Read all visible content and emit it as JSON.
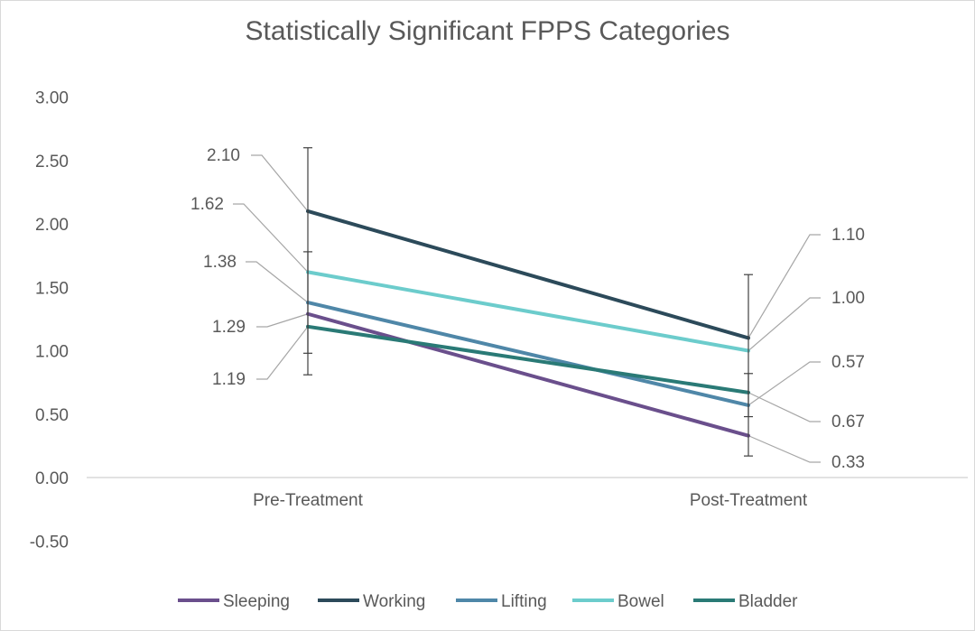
{
  "chart_data": {
    "type": "line",
    "title": "Statistically Significant FPPS Categories",
    "categories": [
      "Pre-Treatment",
      "Post-Treatment"
    ],
    "ylim": [
      -0.5,
      3.0
    ],
    "yticks": [
      3.0,
      2.5,
      2.0,
      1.5,
      1.0,
      0.5,
      0.0,
      -0.5
    ],
    "ytick_labels": [
      "3.00",
      "2.50",
      "2.00",
      "1.50",
      "1.00",
      "0.50",
      "0.00",
      "-0.50"
    ],
    "grid": false,
    "legend_position": "bottom",
    "series": [
      {
        "name": "Sleeping",
        "color": "#6a4f8c",
        "values": [
          1.29,
          0.33
        ],
        "labels": [
          "1.29",
          "0.33"
        ]
      },
      {
        "name": "Working",
        "color": "#2c4a5a",
        "values": [
          2.1,
          1.1
        ],
        "labels": [
          "2.10",
          "1.10"
        ]
      },
      {
        "name": "Lifting",
        "color": "#4f87a8",
        "values": [
          1.38,
          0.57
        ],
        "labels": [
          "1.38",
          "0.57"
        ]
      },
      {
        "name": "Bowel",
        "color": "#6ccccc",
        "values": [
          1.62,
          1.0
        ],
        "labels": [
          "1.62",
          "1.00"
        ]
      },
      {
        "name": "Bladder",
        "color": "#2a7a76",
        "values": [
          1.19,
          0.67
        ],
        "labels": [
          "1.19",
          "0.67"
        ]
      }
    ],
    "error_bars": [
      {
        "category": "Pre-Treatment",
        "low": 0.81,
        "high": 2.6
      },
      {
        "category": "Pre-Treatment",
        "low": 0.98,
        "high": 1.78
      },
      {
        "category": "Post-Treatment",
        "low": 0.17,
        "high": 1.6
      },
      {
        "category": "Post-Treatment",
        "low": 0.48,
        "high": 0.82
      }
    ]
  }
}
